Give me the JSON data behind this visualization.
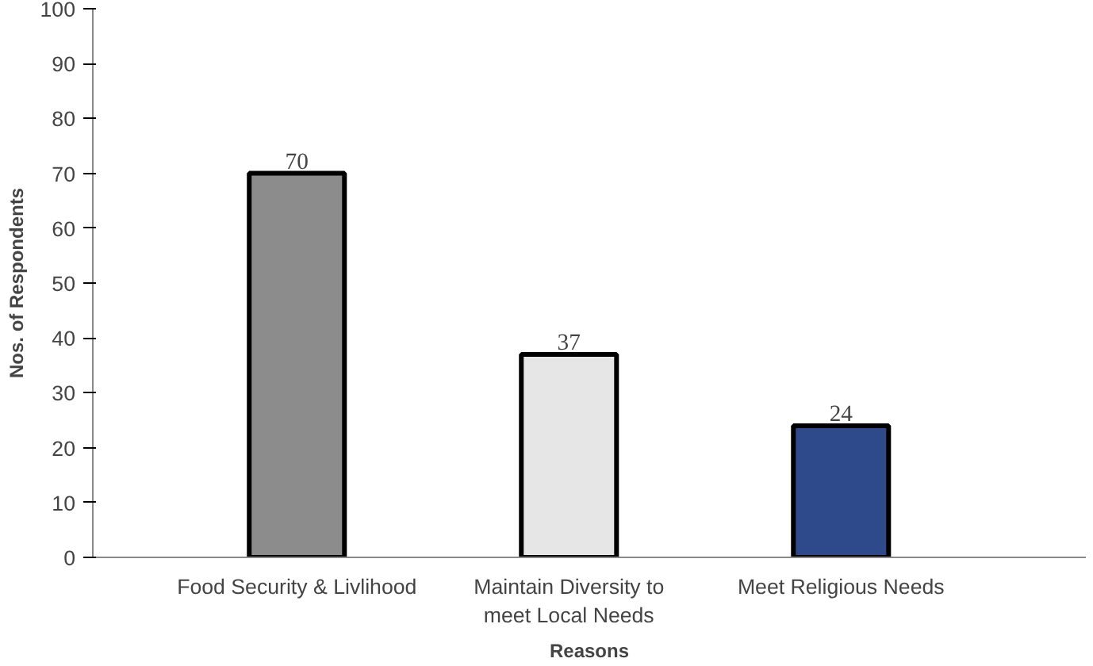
{
  "chart_data": {
    "type": "bar",
    "xlabel": "Reasons",
    "ylabel": "Nos. of Respondents",
    "categories": [
      "Food Security & Livlihood",
      "Maintain Diversity to\nmeet Local Needs",
      "Meet Religious Needs"
    ],
    "values": [
      70,
      37,
      24
    ],
    "colors": [
      "#8c8c8c",
      "#e6e6e6",
      "#2e4a8a"
    ],
    "ylim": [
      0,
      100
    ],
    "yticks": [
      0,
      10,
      20,
      30,
      40,
      50,
      60,
      70,
      80,
      90,
      100
    ],
    "grid": false,
    "data_labels": true
  }
}
